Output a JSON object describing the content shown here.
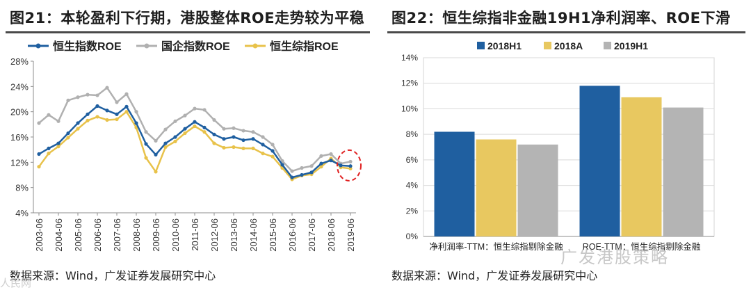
{
  "left": {
    "title": "图21：本轮盈利下行期，港股整体ROE走势较为平稳",
    "source": "数据来源：Wind，广发证券发展研究中心"
  },
  "right": {
    "title": "图22：恒生综指非金融19H1净利润率、ROE下滑",
    "source": "数据来源：Wind，广发证券发展研究中心"
  },
  "watermark": "广发港股策略",
  "watermark2": "人民网",
  "chart_data": [
    {
      "type": "line",
      "x": [
        "2003-06",
        "2003-12",
        "2004-06",
        "2004-12",
        "2005-06",
        "2005-12",
        "2006-06",
        "2006-12",
        "2007-06",
        "2007-12",
        "2008-06",
        "2008-12",
        "2009-06",
        "2009-12",
        "2010-06",
        "2010-12",
        "2011-06",
        "2011-12",
        "2012-06",
        "2012-12",
        "2013-06",
        "2013-12",
        "2014-06",
        "2014-12",
        "2015-06",
        "2015-12",
        "2016-06",
        "2016-12",
        "2017-06",
        "2017-12",
        "2018-06",
        "2018-12",
        "2019-06"
      ],
      "xticks": [
        "2003-06",
        "2004-06",
        "2005-06",
        "2006-06",
        "2007-06",
        "2008-06",
        "2009-06",
        "2010-06",
        "2011-06",
        "2012-06",
        "2013-06",
        "2014-06",
        "2015-06",
        "2016-06",
        "2017-06",
        "2018-06",
        "2019-06"
      ],
      "series": [
        {
          "name": "恒生指数ROE",
          "color": "#1f5fa0",
          "values": [
            13.3,
            14.2,
            15.0,
            16.6,
            18.2,
            19.6,
            20.9,
            20.2,
            19.6,
            20.8,
            18.2,
            14.9,
            13.2,
            15.0,
            16.0,
            17.3,
            18.4,
            17.5,
            16.4,
            15.7,
            16.0,
            15.5,
            15.7,
            14.8,
            13.8,
            11.6,
            9.6,
            10.0,
            10.4,
            11.8,
            12.3,
            11.5,
            11.4
          ]
        },
        {
          "name": "国企指数ROE",
          "color": "#b0b0b0",
          "values": [
            18.2,
            19.5,
            18.5,
            21.8,
            22.3,
            22.7,
            22.6,
            23.8,
            21.5,
            22.8,
            20.0,
            16.8,
            15.4,
            17.2,
            18.5,
            19.4,
            20.5,
            20.3,
            18.7,
            17.3,
            17.4,
            17.0,
            16.8,
            16.0,
            14.8,
            12.2,
            10.6,
            11.1,
            11.4,
            13.0,
            13.3,
            11.8,
            12.1
          ]
        },
        {
          "name": "恒生综指ROE",
          "color": "#e8c24a",
          "values": [
            11.3,
            13.4,
            14.5,
            15.9,
            17.3,
            18.6,
            19.2,
            18.7,
            18.8,
            20.0,
            17.5,
            12.7,
            10.5,
            14.4,
            15.3,
            16.6,
            17.7,
            16.8,
            15.0,
            14.3,
            14.4,
            14.2,
            14.2,
            13.4,
            12.9,
            11.1,
            9.3,
            9.9,
            10.1,
            11.3,
            12.6,
            11.2,
            11.0
          ]
        }
      ],
      "ylim": [
        4,
        28
      ],
      "yticks": [
        "4%",
        "8%",
        "12%",
        "16%",
        "20%",
        "24%",
        "28%"
      ],
      "grid": false,
      "legend": "top",
      "annotation": "red dashed ellipse around 2019-06"
    },
    {
      "type": "bar",
      "categories": [
        "净利润率-TTM：恒生综指剔除金融",
        "ROE-TTM：恒生综指剔除金融"
      ],
      "series": [
        {
          "name": "2018H1",
          "color": "#1f5fa0",
          "values": [
            8.2,
            11.8
          ]
        },
        {
          "name": "2018A",
          "color": "#e8c860",
          "values": [
            7.6,
            10.9
          ]
        },
        {
          "name": "2019H1",
          "color": "#b4b4b4",
          "values": [
            7.2,
            10.1
          ]
        }
      ],
      "ylim": [
        0,
        14
      ],
      "yticks": [
        "0%",
        "2%",
        "4%",
        "6%",
        "8%",
        "10%",
        "12%",
        "14%"
      ],
      "grid": true,
      "legend": "top"
    }
  ]
}
